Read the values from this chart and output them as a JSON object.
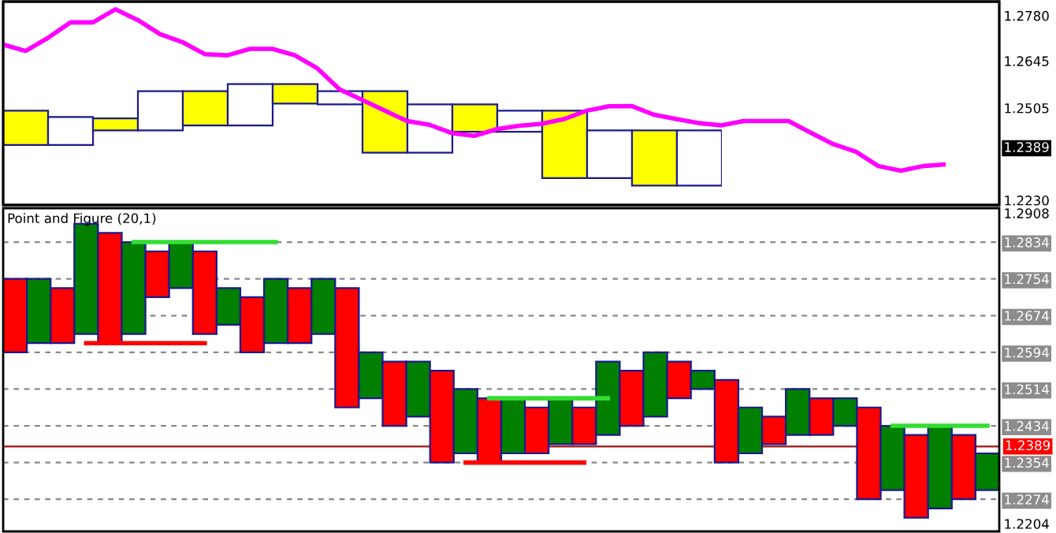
{
  "chart_data": [
    {
      "type": "bar",
      "categories": [
        null,
        null,
        null,
        null,
        null,
        null,
        null,
        null,
        null,
        null,
        null,
        null,
        null,
        null,
        null,
        null
      ],
      "ylim": [
        1.2216,
        1.2822
      ],
      "base": [
        1.2395,
        1.2395,
        1.2438,
        1.2438,
        1.2453,
        1.2453,
        1.2518,
        1.2516,
        1.2372,
        1.2372,
        1.2434,
        1.2434,
        1.2296,
        1.2296,
        1.2274,
        1.2274
      ],
      "values": [
        0.0102,
        0.0083,
        0.0036,
        0.0117,
        0.0102,
        0.0123,
        0.0058,
        0.0039,
        0.0183,
        0.0144,
        0.0082,
        0.0063,
        0.0201,
        0.0142,
        0.0164,
        0.0164
      ],
      "colors": [
        "#ffff00",
        "#ffffff",
        "#ffff00",
        "#ffffff",
        "#ffff00",
        "#ffffff",
        "#ffff00",
        "#ffffff",
        "#ffff00",
        "#ffffff",
        "#ffff00",
        "#ffffff",
        "#ffff00",
        "#ffffff",
        "#ffff00",
        "#ffffff"
      ]
    },
    {
      "type": "line",
      "categories": [
        null,
        null,
        null,
        null,
        null,
        null,
        null,
        null,
        null,
        null,
        null,
        null,
        null,
        null,
        null,
        null,
        null,
        null,
        null,
        null,
        null,
        null,
        null,
        null,
        null,
        null,
        null,
        null,
        null,
        null,
        null,
        null,
        null,
        null,
        null,
        null,
        null,
        null,
        null,
        null,
        null,
        null,
        null
      ],
      "ylim": [
        1.2216,
        1.2822
      ],
      "yticks": [
        {
          "value": 1.278,
          "label": "1.2780"
        },
        1.2645,
        1.2505,
        {
          "value": 1.223,
          "label": "1.2230"
        },
        {
          "value": 1.2389,
          "label": "1.2389"
        }
      ],
      "series": [
        {
          "color": "#ff00ff",
          "values": [
            1.2694,
            1.2675,
            1.2714,
            1.276,
            1.276,
            1.2799,
            1.2767,
            1.2725,
            1.2701,
            1.2665,
            1.2662,
            1.2681,
            1.2681,
            1.2662,
            1.2623,
            1.256,
            1.2529,
            1.2497,
            1.2466,
            1.2455,
            1.243,
            1.2422,
            1.2442,
            1.2452,
            1.2458,
            1.2472,
            1.2497,
            1.251,
            1.2511,
            1.2485,
            1.2472,
            1.246,
            1.2453,
            1.2466,
            1.2466,
            1.2466,
            1.2431,
            1.2397,
            1.2375,
            1.2332,
            1.2318,
            1.2332,
            1.2337
          ]
        }
      ]
    },
    {
      "type": "bar",
      "title": "Point and Figure (20,1)",
      "categories": [
        null,
        null,
        null,
        null,
        null,
        null,
        null,
        null,
        null,
        null,
        null,
        null,
        null,
        null,
        null,
        null,
        null,
        null,
        null,
        null,
        null,
        null,
        null,
        null,
        null,
        null,
        null,
        null,
        null,
        null,
        null,
        null,
        null,
        null,
        null,
        null,
        null,
        null,
        null,
        null,
        null,
        null
      ],
      "ylim": [
        1.2204,
        1.2908
      ],
      "yticks": [
        1.2908,
        1.2834,
        1.2754,
        1.2674,
        1.2594,
        1.2514,
        1.2434,
        1.2354,
        1.2274,
        1.2204
      ],
      "grid": "y",
      "ref_lines": [
        {
          "axis": "y",
          "value": 1.2389,
          "label": "1.2389",
          "color": "#a52a2a"
        }
      ],
      "series": [
        {
          "type": "bar",
          "base": [
            1.2594,
            1.2614,
            1.2614,
            1.2634,
            1.2614,
            1.2634,
            1.2714,
            1.2734,
            1.2634,
            1.2654,
            1.2594,
            1.2614,
            1.2614,
            1.2634,
            1.2474,
            1.2494,
            1.2434,
            1.2454,
            1.2354,
            1.2374,
            1.2354,
            1.2374,
            1.2374,
            1.2394,
            1.2394,
            1.2414,
            1.2434,
            1.2454,
            1.2494,
            1.2514,
            1.2354,
            1.2374,
            1.2394,
            1.2414,
            1.2414,
            1.2434,
            1.2274,
            1.2294,
            1.2234,
            1.2254,
            1.2274,
            1.2294
          ],
          "values": [
            0.016,
            0.014,
            0.012,
            0.024,
            0.024,
            0.02,
            0.01,
            0.01,
            0.018,
            0.008,
            0.012,
            0.014,
            0.012,
            0.012,
            0.026,
            0.01,
            0.014,
            0.012,
            0.02,
            0.014,
            0.014,
            0.012,
            0.01,
            0.01,
            0.008,
            0.016,
            0.012,
            0.014,
            0.008,
            0.004,
            0.018,
            0.01,
            0.006,
            0.01,
            0.008,
            0.006,
            0.02,
            0.014,
            0.018,
            0.018,
            0.014,
            0.008
          ],
          "colors": [
            "#ff0000",
            "#007f00",
            "#ff0000",
            "#007f00",
            "#ff0000",
            "#007f00",
            "#ff0000",
            "#007f00",
            "#ff0000",
            "#007f00",
            "#ff0000",
            "#007f00",
            "#ff0000",
            "#007f00",
            "#ff0000",
            "#007f00",
            "#ff0000",
            "#007f00",
            "#ff0000",
            "#007f00",
            "#ff0000",
            "#007f00",
            "#ff0000",
            "#007f00",
            "#ff0000",
            "#007f00",
            "#ff0000",
            "#007f00",
            "#ff0000",
            "#007f00",
            "#ff0000",
            "#007f00",
            "#ff0000",
            "#007f00",
            "#ff0000",
            "#007f00",
            "#ff0000",
            "#007f00",
            "#ff0000",
            "#007f00",
            "#ff0000",
            "#007f00"
          ]
        },
        {
          "type": "line",
          "color": "#33dd33",
          "values": [
            null,
            null,
            null,
            null,
            null,
            1.2834,
            1.2834,
            1.2834,
            1.2834,
            1.2834,
            1.2834,
            1.2834,
            null,
            null,
            null,
            null,
            null,
            null,
            null,
            null,
            1.2494,
            1.2494,
            1.2494,
            1.2494,
            1.2494,
            1.2494,
            null,
            null,
            null,
            null,
            null,
            null,
            null,
            null,
            null,
            null,
            null,
            1.2434,
            1.2434,
            1.2434,
            1.2434,
            1.2434
          ]
        },
        {
          "type": "line",
          "color": "#ff0000",
          "values": [
            null,
            null,
            null,
            1.2614,
            1.2614,
            1.2614,
            1.2614,
            1.2614,
            1.2614,
            null,
            null,
            null,
            null,
            null,
            null,
            null,
            null,
            null,
            null,
            1.2354,
            1.2354,
            1.2354,
            1.2354,
            1.2354,
            1.2354,
            null,
            null,
            null,
            null,
            null,
            null,
            null,
            null,
            null,
            null,
            null,
            null,
            null,
            null,
            null,
            null,
            null
          ]
        }
      ]
    }
  ]
}
